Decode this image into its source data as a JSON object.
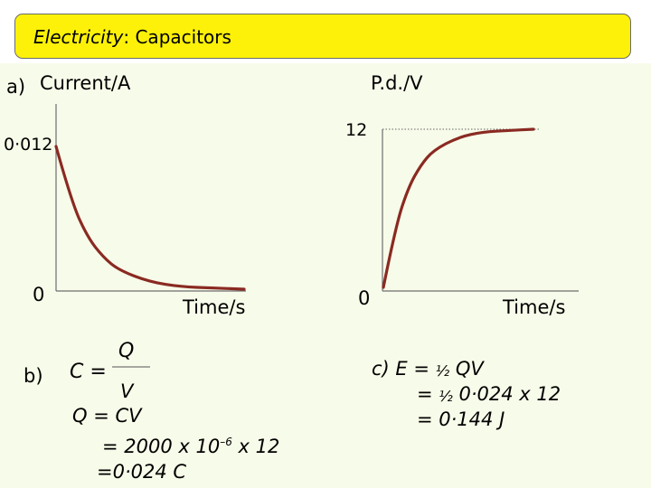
{
  "title": {
    "main": "Electricity",
    "sep": ":",
    "sub": " Capacitors"
  },
  "part_a": {
    "label": "a)"
  },
  "chart_data": [
    {
      "type": "line",
      "title": "",
      "xlabel": "Time/s",
      "ylabel": "Current/A",
      "y_tick_labels": [
        "0·012",
        "0"
      ],
      "series": [
        {
          "x": [
            0,
            0.5,
            1,
            1.5,
            2,
            3,
            4,
            5,
            6
          ],
          "y": [
            0.012,
            0.0073,
            0.0044,
            0.0027,
            0.0016,
            0.0006,
            0.0002,
            0.0001,
            0.0
          ]
        }
      ],
      "ylim": [
        0,
        0.012
      ],
      "grid": false
    },
    {
      "type": "line",
      "title": "",
      "xlabel": "Time/s",
      "ylabel": "P.d./V",
      "y_tick_labels": [
        "12",
        "0"
      ],
      "series": [
        {
          "x": [
            0,
            0.5,
            1,
            1.5,
            2,
            3,
            4,
            5,
            6
          ],
          "y": [
            0,
            4.7,
            7.6,
            9.3,
            10.4,
            11.4,
            11.8,
            11.9,
            12
          ]
        }
      ],
      "ylim": [
        0,
        12
      ],
      "asymptote": 12,
      "grid": false
    }
  ],
  "part_b": {
    "label": "b)",
    "c_eq": "C =",
    "numerator": "Q",
    "denominator": "V",
    "line1": "Q = CV",
    "line2_pre": "= 2000 x 10",
    "line2_exp": "–6",
    "line2_post": " x 12",
    "line3": "=0·024 C"
  },
  "part_c": {
    "line1_pre": "c) E = ",
    "half": "½",
    "line1_post": " QV",
    "line2_pre": "= ",
    "line2_post": " 0·024 x 12",
    "line3": "= 0·144 J"
  }
}
